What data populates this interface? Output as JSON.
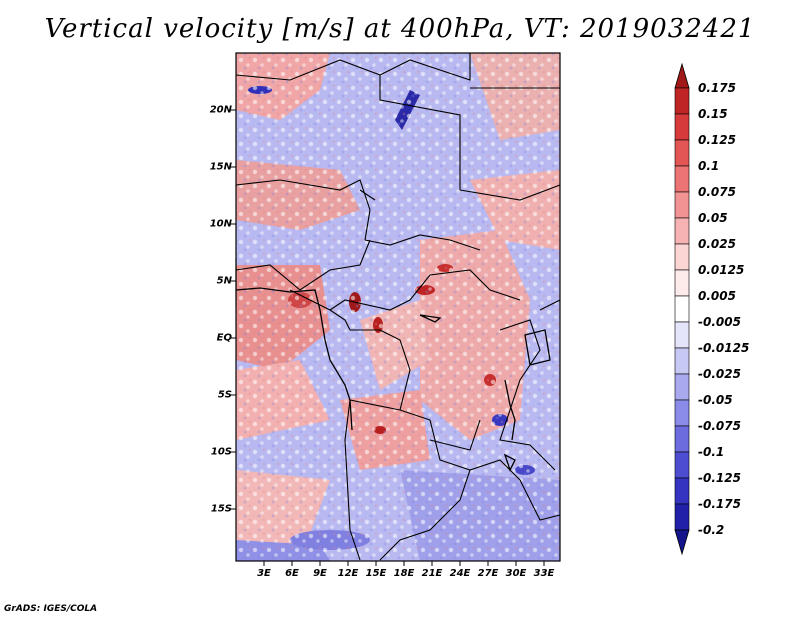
{
  "title": "Vertical velocity [m/s] at 400hPa, VT: 2019032421",
  "credit": "GrADS: IGES/COLA",
  "lat_ticks": [
    "20N",
    "15N",
    "10N",
    "5N",
    "EQ",
    "5S",
    "10S",
    "15S"
  ],
  "lon_ticks": [
    "3E",
    "6E",
    "9E",
    "12E",
    "15E",
    "18E",
    "21E",
    "24E",
    "27E",
    "30E",
    "33E"
  ],
  "colorbar": {
    "labels": [
      "0.175",
      "0.15",
      "0.125",
      "0.1",
      "0.075",
      "0.05",
      "0.025",
      "0.0125",
      "0.005",
      "-0.005",
      "-0.0125",
      "-0.025",
      "-0.05",
      "-0.075",
      "-0.1",
      "-0.125",
      "-0.175",
      "-0.2"
    ],
    "colors": [
      "#a01818",
      "#c02525",
      "#d63a3a",
      "#e25656",
      "#ec7474",
      "#f29393",
      "#f7b3b3",
      "#fbd4d4",
      "#fdeaea",
      "#ffffff",
      "#e4e4fb",
      "#c8c8f5",
      "#a9a9ef",
      "#8b8be9",
      "#6c6cdf",
      "#4d4dd2",
      "#3434c0",
      "#2020a8",
      "#14148c"
    ]
  }
}
